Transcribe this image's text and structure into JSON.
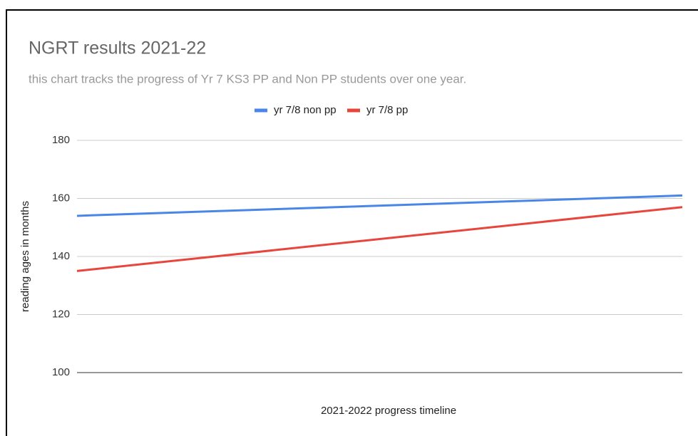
{
  "chart_data": {
    "type": "line",
    "title": "NGRT results 2021-22",
    "subtitle": "this chart tracks the progress of Yr 7 KS3 PP and Non PP students over one year.",
    "xlabel": "2021-2022 progress timeline",
    "ylabel": "reading ages in months",
    "categories": [
      null,
      null
    ],
    "series": [
      {
        "name": "yr 7/8 non pp",
        "color": "#4a86e8",
        "values": [
          154,
          161
        ]
      },
      {
        "name": "yr 7/8 pp",
        "color": "#e8453c",
        "values": [
          135,
          157
        ]
      }
    ],
    "ylim": [
      100,
      180
    ],
    "yticks": [
      100,
      120,
      140,
      160,
      180
    ],
    "grid": true,
    "legend": "top"
  }
}
